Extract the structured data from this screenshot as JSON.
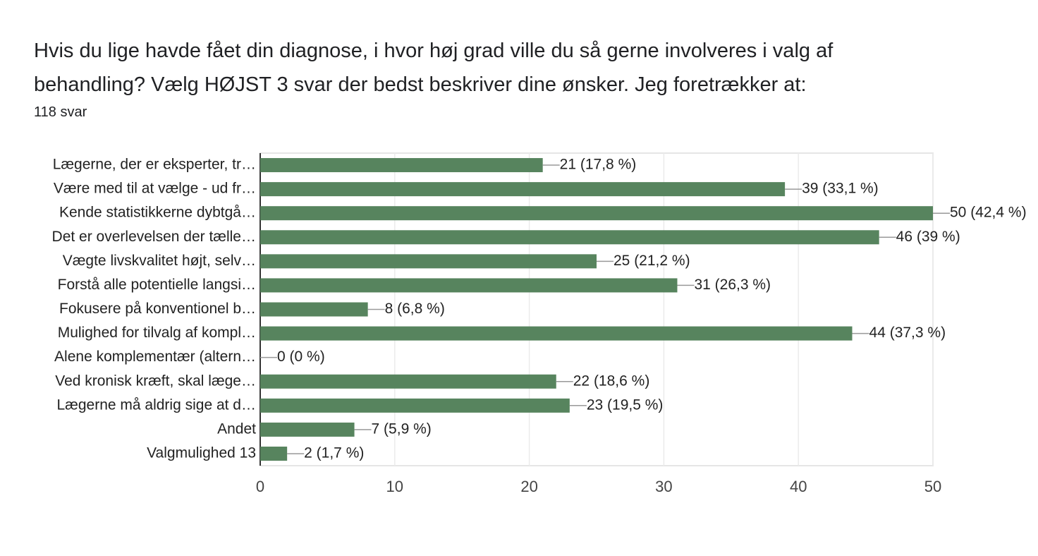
{
  "chart_data": {
    "type": "bar",
    "orientation": "horizontal",
    "title": "Hvis du lige havde fået din diagnose, i hvor høj grad ville du så gerne involveres i valg af behandling? Vælg HØJST 3 svar der bedst beskriver dine ønsker. Jeg foretrækker at:",
    "subtitle": "118 svar",
    "categories": [
      "Lægerne, der er eksperter, tr…",
      "Være med til at vælge - ud fr…",
      "Kende statistikkerne dybtgå…",
      "Det er overlevelsen der tælle…",
      "Vægte livskvalitet højt, selv…",
      "Forstå alle potentielle langsi…",
      "Fokusere på konventionel b…",
      "Mulighed for tilvalg af kompl…",
      "Alene komplementær (altern…",
      "Ved kronisk kræft, skal læge…",
      "Lægerne må aldrig sige at d…",
      "Andet",
      "Valgmulighed 13"
    ],
    "values": [
      21,
      39,
      50,
      46,
      25,
      31,
      8,
      44,
      0,
      22,
      23,
      7,
      2
    ],
    "value_labels": [
      "21 (17,8 %)",
      "39 (33,1 %)",
      "50 (42,4 %)",
      "46 (39 %)",
      "25 (21,2 %)",
      "31 (26,3 %)",
      "8 (6,8 %)",
      "44 (37,3 %)",
      "0 (0 %)",
      "22 (18,6 %)",
      "23 (19,5 %)",
      "7 (5,9 %)",
      "2 (1,7 %)"
    ],
    "color": "#57845e",
    "xlim": [
      0,
      50
    ],
    "xticks": [
      0,
      10,
      20,
      30,
      40,
      50
    ],
    "grid": true
  }
}
